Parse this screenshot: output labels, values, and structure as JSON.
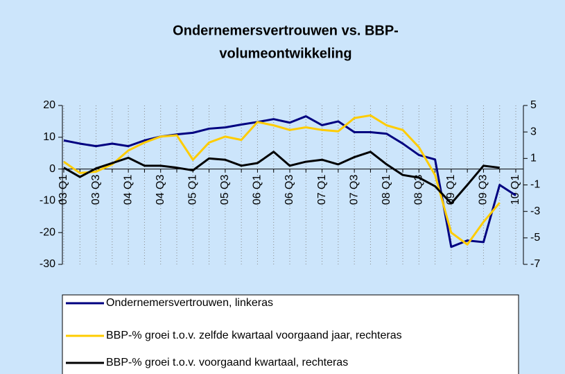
{
  "chart_data": {
    "type": "line",
    "title": [
      "Ondernemersvertrouwen vs. BBP-",
      "volumeontwikkeling"
    ],
    "categories": [
      "03 Q1",
      null,
      "03 Q3",
      null,
      "04 Q1",
      null,
      "04 Q3",
      null,
      "05 Q1",
      null,
      "05 Q3",
      null,
      "06 Q1",
      null,
      "06 Q3",
      null,
      "07 Q1",
      null,
      "07 Q3",
      null,
      "08 Q1",
      null,
      "08 Q3",
      null,
      "09 Q1",
      null,
      "09 Q3",
      null,
      "10 Q1"
    ],
    "series": [
      {
        "name": "Ondernemersvertrouwen, linkeras",
        "color": "#000080",
        "axis": "y",
        "values": [
          9,
          8,
          7.2,
          8,
          7.2,
          9,
          10.2,
          10.9,
          11.4,
          12.7,
          13.1,
          14,
          14.8,
          15.7,
          14.6,
          16.6,
          13.8,
          15,
          11.6,
          11.6,
          11.1,
          8,
          4.4,
          3,
          -24.5,
          -22.5,
          -23,
          -5,
          -8.3
        ]
      },
      {
        "name": "BBP-% groei t.o.v. zelfde kwartaal voorgaand jaar, rechteras",
        "color": "#ffcc00",
        "axis": "y2",
        "values": [
          0.75,
          -0.1,
          0,
          0.55,
          1.6,
          2.2,
          2.65,
          2.75,
          0.9,
          2.2,
          2.65,
          2.4,
          3.75,
          3.5,
          3.15,
          3.35,
          3.15,
          3.05,
          4.05,
          4.25,
          3.5,
          3.15,
          1.85,
          -0.25,
          -4.6,
          -5.5,
          -3.8,
          -2.35,
          null
        ]
      },
      {
        "name": "BBP-% groei t.o.v. voorgaand kwartaal, rechteras",
        "color": "#000000",
        "axis": "y2",
        "values": [
          0.3,
          -0.4,
          0.25,
          0.65,
          1.05,
          0.45,
          0.45,
          0.3,
          0.1,
          1,
          0.9,
          0.45,
          0.65,
          1.5,
          0.45,
          0.75,
          0.9,
          0.55,
          1.1,
          1.5,
          0.55,
          -0.25,
          -0.45,
          -1.1,
          -2.4,
          -1,
          0.45,
          0.3,
          null
        ]
      }
    ],
    "ylim": [
      -30,
      20
    ],
    "yticks": [
      -30,
      -20,
      -10,
      0,
      10,
      20
    ],
    "y2lim": [
      -7,
      5
    ],
    "y2ticks": [
      -7,
      -5,
      -3,
      -1,
      1,
      3,
      5
    ],
    "grid": true
  }
}
